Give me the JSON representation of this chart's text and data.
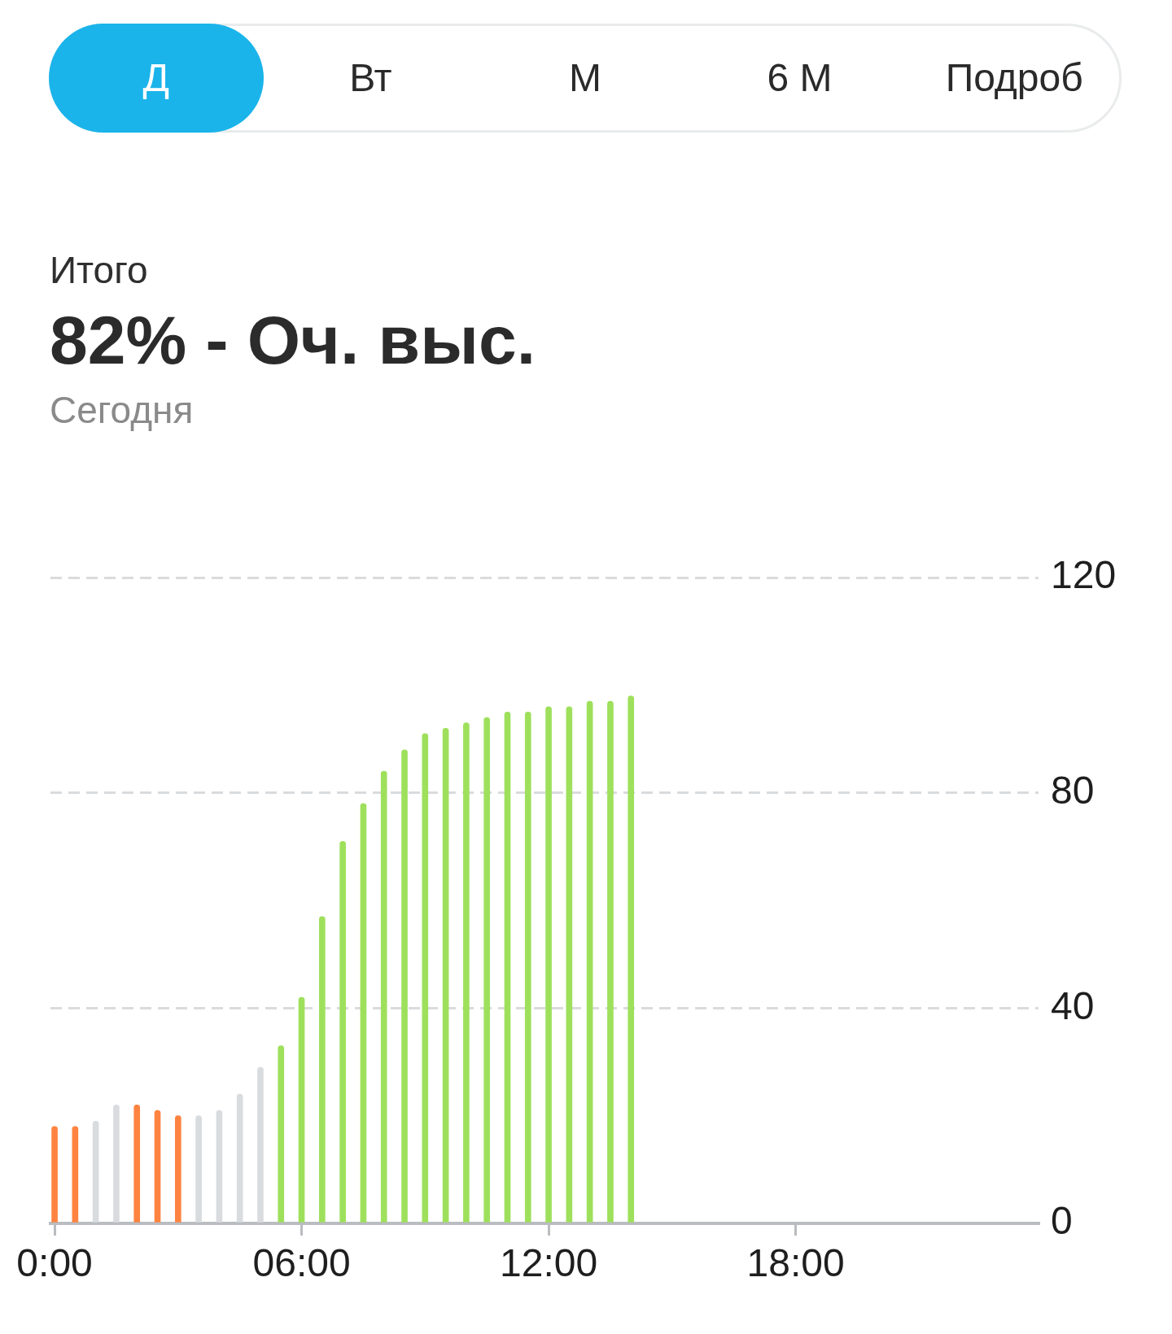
{
  "chart_data": {
    "type": "bar",
    "title": "82% - Оч. выс.",
    "subtitle": "Сегодня",
    "annotations": [
      "Д",
      "Вт",
      "М",
      "6 М",
      "Подроб",
      "Итого"
    ],
    "x": [
      0,
      0.5,
      1,
      1.5,
      2,
      2.5,
      3,
      3.5,
      4,
      4.5,
      5,
      5.5,
      6,
      6.5,
      7,
      7.5,
      8,
      8.5,
      9,
      9.5,
      10,
      10.5,
      11,
      11.5,
      12,
      12.5,
      13,
      13.5,
      14
    ],
    "values": [
      18,
      18,
      19,
      22,
      22,
      21,
      20,
      20,
      21,
      24,
      29,
      33,
      42,
      57,
      71,
      78,
      84,
      88,
      91,
      92,
      93,
      94,
      95,
      95,
      96,
      96,
      97,
      97,
      98
    ],
    "colors": [
      "#ff8340",
      "#ff8340",
      "#d9dcdf",
      "#d9dcdf",
      "#ff8340",
      "#ff8340",
      "#ff8340",
      "#d9dcdf",
      "#d9dcdf",
      "#d9dcdf",
      "#d9dcdf",
      "#9ee05c",
      "#9ee05c",
      "#9ee05c",
      "#9ee05c",
      "#9ee05c",
      "#9ee05c",
      "#9ee05c",
      "#9ee05c",
      "#9ee05c",
      "#9ee05c",
      "#9ee05c",
      "#9ee05c",
      "#9ee05c",
      "#9ee05c",
      "#9ee05c",
      "#9ee05c",
      "#9ee05c",
      "#9ee05c"
    ],
    "xlim": [
      -0.1,
      23.9
    ],
    "xticks": [
      {
        "value": 0,
        "label": "0:00"
      },
      {
        "value": 6,
        "label": "06:00"
      },
      {
        "value": 12,
        "label": "12:00"
      },
      {
        "value": 18,
        "label": "18:00"
      }
    ],
    "ylim": [
      0,
      120
    ],
    "yticks": [
      0,
      40,
      80,
      120
    ],
    "grid": "y"
  }
}
